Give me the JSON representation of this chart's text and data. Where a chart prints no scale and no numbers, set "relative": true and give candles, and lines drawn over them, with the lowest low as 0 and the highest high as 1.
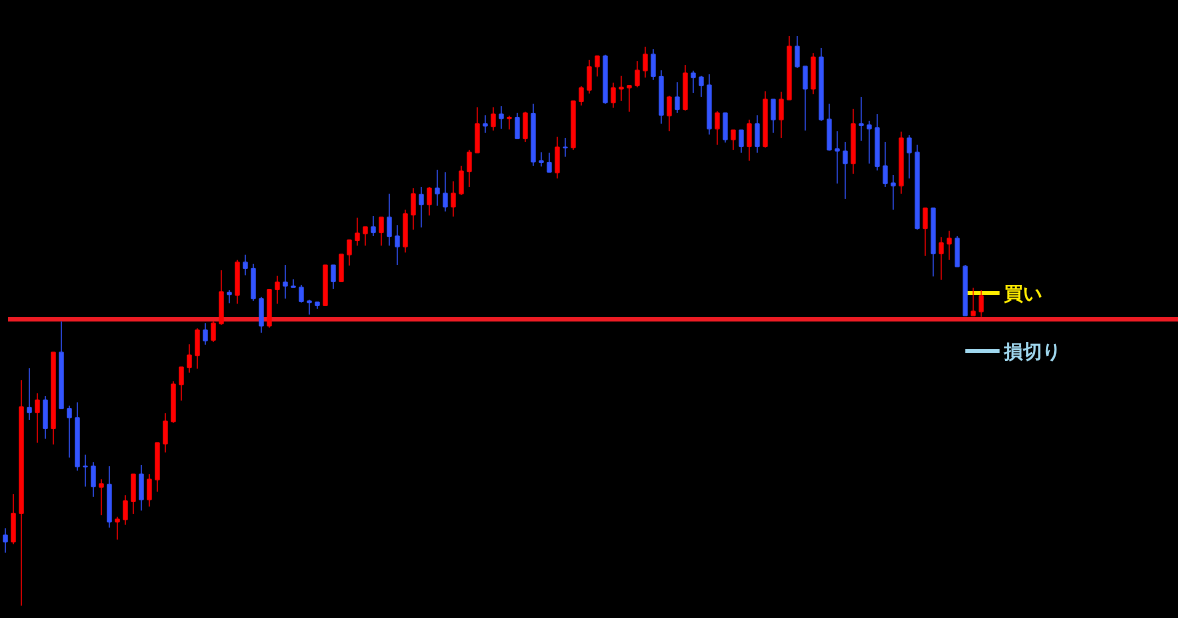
{
  "chart_data": {
    "type": "candlestick",
    "relative": true,
    "categories": [
      null,
      null,
      null,
      null,
      null,
      null,
      null,
      null,
      null,
      null,
      null,
      null,
      null,
      null,
      null,
      null,
      null,
      null,
      null,
      null,
      null,
      null,
      null,
      null,
      null,
      null,
      null,
      null,
      null,
      null,
      null,
      null,
      null,
      null,
      null,
      null,
      null,
      null,
      null,
      null,
      null,
      null,
      null,
      null,
      null,
      null,
      null,
      null,
      null,
      null,
      null,
      null,
      null,
      null,
      null,
      null,
      null,
      null,
      null,
      null,
      null,
      null,
      null,
      null,
      null,
      null,
      null,
      null,
      null,
      null,
      null,
      null,
      null,
      null,
      null,
      null,
      null,
      null,
      null,
      null,
      null,
      null,
      null,
      null,
      null,
      null,
      null,
      null,
      null,
      null,
      null,
      null,
      null,
      null,
      null,
      null,
      null,
      null,
      null,
      null,
      null,
      null,
      null,
      null,
      null,
      null,
      null,
      null,
      null,
      null,
      null,
      null,
      null,
      null,
      null,
      null,
      null,
      null,
      null,
      null,
      null,
      null,
      null
    ],
    "ohlc": [
      [
        0.124,
        0.136,
        0.093,
        0.112
      ],
      [
        0.112,
        0.196,
        0.108,
        0.162
      ],
      [
        0.162,
        0.396,
        0,
        0.349
      ],
      [
        0.348,
        0.417,
        0.326,
        0.339
      ],
      [
        0.339,
        0.373,
        0.286,
        0.361
      ],
      [
        0.361,
        0.368,
        0.293,
        0.311
      ],
      [
        0.311,
        0.445,
        0.283,
        0.445
      ],
      [
        0.445,
        0.499,
        0.346,
        0.346
      ],
      [
        0.346,
        0.351,
        0.26,
        0.33
      ],
      [
        0.33,
        0.357,
        0.237,
        0.244
      ],
      [
        0.245,
        0.265,
        0.209,
        0.244
      ],
      [
        0.245,
        0.252,
        0.191,
        0.209
      ],
      [
        0.208,
        0.222,
        0.159,
        0.214
      ],
      [
        0.213,
        0.245,
        0.137,
        0.147
      ],
      [
        0.147,
        0.156,
        0.116,
        0.152
      ],
      [
        0.151,
        0.194,
        0.142,
        0.184
      ],
      [
        0.183,
        0.231,
        0.161,
        0.231
      ],
      [
        0.231,
        0.247,
        0.167,
        0.186
      ],
      [
        0.186,
        0.231,
        0.174,
        0.222
      ],
      [
        0.221,
        0.286,
        0.2,
        0.286
      ],
      [
        0.284,
        0.338,
        0.269,
        0.324
      ],
      [
        0.323,
        0.394,
        0.321,
        0.389
      ],
      [
        0.388,
        0.419,
        0.36,
        0.419
      ],
      [
        0.418,
        0.459,
        0.409,
        0.44
      ],
      [
        0.439,
        0.487,
        0.416,
        0.484
      ],
      [
        0.484,
        0.496,
        0.458,
        0.465
      ],
      [
        0.466,
        0.5,
        0.463,
        0.496
      ],
      [
        0.495,
        0.589,
        0.493,
        0.551
      ],
      [
        0.55,
        0.554,
        0.531,
        0.546
      ],
      [
        0.545,
        0.607,
        0.53,
        0.603
      ],
      [
        0.603,
        0.616,
        0.58,
        0.592
      ],
      [
        0.592,
        0.6,
        0.535,
        0.539
      ],
      [
        0.539,
        0.542,
        0.479,
        0.491
      ],
      [
        0.491,
        0.555,
        0.488,
        0.555
      ],
      [
        0.555,
        0.579,
        0.53,
        0.568
      ],
      [
        0.568,
        0.598,
        0.539,
        0.561
      ],
      [
        0.561,
        0.573,
        0.559,
        0.559
      ],
      [
        0.559,
        0.563,
        0.532,
        0.534
      ],
      [
        0.535,
        0.537,
        0.511,
        0.532
      ],
      [
        0.533,
        0.533,
        0.521,
        0.527
      ],
      [
        0.527,
        0.598,
        0.527,
        0.598
      ],
      [
        0.598,
        0.598,
        0.556,
        0.569
      ],
      [
        0.569,
        0.617,
        0.569,
        0.617
      ],
      [
        0.616,
        0.642,
        0.597,
        0.642
      ],
      [
        0.641,
        0.681,
        0.632,
        0.654
      ],
      [
        0.653,
        0.665,
        0.632,
        0.665
      ],
      [
        0.665,
        0.684,
        0.649,
        0.655
      ],
      [
        0.655,
        0.682,
        0.632,
        0.682
      ],
      [
        0.682,
        0.723,
        0.632,
        0.648
      ],
      [
        0.649,
        0.668,
        0.598,
        0.63
      ],
      [
        0.63,
        0.695,
        0.62,
        0.688
      ],
      [
        0.686,
        0.733,
        0.66,
        0.723
      ],
      [
        0.722,
        0.735,
        0.664,
        0.704
      ],
      [
        0.704,
        0.735,
        0.685,
        0.733
      ],
      [
        0.733,
        0.765,
        0.702,
        0.723
      ],
      [
        0.724,
        0.761,
        0.692,
        0.7
      ],
      [
        0.7,
        0.745,
        0.683,
        0.724
      ],
      [
        0.723,
        0.772,
        0.721,
        0.763
      ],
      [
        0.762,
        0.8,
        0.735,
        0.796
      ],
      [
        0.795,
        0.875,
        0.795,
        0.846
      ],
      [
        0.846,
        0.861,
        0.83,
        0.842
      ],
      [
        0.841,
        0.875,
        0.834,
        0.863
      ],
      [
        0.863,
        0.877,
        0.837,
        0.855
      ],
      [
        0.855,
        0.86,
        0.836,
        0.857
      ],
      [
        0.857,
        0.865,
        0.82,
        0.82
      ],
      [
        0.82,
        0.867,
        0.814,
        0.865
      ],
      [
        0.864,
        0.881,
        0.772,
        0.779
      ],
      [
        0.781,
        0.796,
        0.771,
        0.778
      ],
      [
        0.778,
        0.795,
        0.761,
        0.761
      ],
      [
        0.76,
        0.823,
        0.75,
        0.805
      ],
      [
        0.805,
        0.821,
        0.788,
        0.804
      ],
      [
        0.804,
        0.886,
        0.8,
        0.886
      ],
      [
        0.885,
        0.912,
        0.878,
        0.909
      ],
      [
        0.905,
        0.958,
        0.899,
        0.946
      ],
      [
        0.946,
        0.965,
        0.929,
        0.965
      ],
      [
        0.965,
        0.967,
        0.881,
        0.883
      ],
      [
        0.883,
        0.918,
        0.874,
        0.909
      ],
      [
        0.907,
        0.93,
        0.886,
        0.91
      ],
      [
        0.909,
        0.913,
        0.867,
        0.913
      ],
      [
        0.913,
        0.956,
        0.91,
        0.94
      ],
      [
        0.939,
        0.981,
        0.927,
        0.968
      ],
      [
        0.968,
        0.977,
        0.923,
        0.929
      ],
      [
        0.929,
        0.94,
        0.846,
        0.861
      ],
      [
        0.86,
        0.895,
        0.833,
        0.893
      ],
      [
        0.893,
        0.919,
        0.865,
        0.871
      ],
      [
        0.871,
        0.949,
        0.869,
        0.935
      ],
      [
        0.935,
        0.939,
        0.9,
        0.927
      ],
      [
        0.928,
        0.93,
        0.893,
        0.913
      ],
      [
        0.914,
        0.933,
        0.827,
        0.837
      ],
      [
        0.837,
        0.868,
        0.809,
        0.865
      ],
      [
        0.865,
        0.865,
        0.813,
        0.818
      ],
      [
        0.818,
        0.835,
        0.8,
        0.835
      ],
      [
        0.835,
        0.835,
        0.795,
        0.806
      ],
      [
        0.806,
        0.853,
        0.781,
        0.846
      ],
      [
        0.846,
        0.861,
        0.795,
        0.806
      ],
      [
        0.806,
        0.903,
        0.804,
        0.889
      ],
      [
        0.889,
        0.889,
        0.83,
        0.853
      ],
      [
        0.853,
        0.902,
        0.821,
        0.889
      ],
      [
        0.888,
        1,
        0.888,
        0.982
      ],
      [
        0.982,
        1,
        0.944,
        0.946
      ],
      [
        0.947,
        0.947,
        0.834,
        0.907
      ],
      [
        0.907,
        0.97,
        0.898,
        0.963
      ],
      [
        0.963,
        0.979,
        0.851,
        0.853
      ],
      [
        0.854,
        0.881,
        0.799,
        0.8
      ],
      [
        0.802,
        0.833,
        0.741,
        0.798
      ],
      [
        0.798,
        0.814,
        0.714,
        0.776
      ],
      [
        0.776,
        0.872,
        0.758,
        0.846
      ],
      [
        0.846,
        0.893,
        0.816,
        0.843
      ],
      [
        0.844,
        0.851,
        0.776,
        0.837
      ],
      [
        0.839,
        0.863,
        0.764,
        0.771
      ],
      [
        0.772,
        0.814,
        0.735,
        0.741
      ],
      [
        0.742,
        0.756,
        0.695,
        0.737
      ],
      [
        0.737,
        0.832,
        0.723,
        0.821
      ],
      [
        0.821,
        0.826,
        0.75,
        0.795
      ],
      [
        0.796,
        0.809,
        0.66,
        0.662
      ],
      [
        0.662,
        0.698,
        0.614,
        0.698
      ],
      [
        0.698,
        0.698,
        0.578,
        0.618
      ],
      [
        0.618,
        0.647,
        0.572,
        0.637
      ],
      [
        0.635,
        0.658,
        0.607,
        0.645
      ],
      [
        0.645,
        0.649,
        0.595,
        0.595
      ],
      [
        0.596,
        0.598,
        0.509,
        0.509
      ],
      [
        0.509,
        0.558,
        0.509,
        0.517
      ],
      [
        0.516,
        0.554,
        0.507,
        0.544
      ]
    ],
    "colors": [
      "#3355ff",
      "#ff0000",
      "#ff0000",
      "#3355ff",
      "#ff0000",
      "#3355ff",
      "#ff0000",
      "#3355ff",
      "#3355ff",
      "#3355ff",
      "#3355ff",
      "#3355ff",
      "#ff0000",
      "#3355ff",
      "#ff0000",
      "#ff0000",
      "#ff0000",
      "#3355ff",
      "#ff0000",
      "#ff0000",
      "#ff0000",
      "#ff0000",
      "#ff0000",
      "#ff0000",
      "#ff0000",
      "#3355ff",
      "#ff0000",
      "#ff0000",
      "#3355ff",
      "#ff0000",
      "#3355ff",
      "#3355ff",
      "#3355ff",
      "#ff0000",
      "#ff0000",
      "#3355ff",
      "#3355ff",
      "#3355ff",
      "#3355ff",
      "#3355ff",
      "#ff0000",
      "#3355ff",
      "#ff0000",
      "#ff0000",
      "#ff0000",
      "#ff0000",
      "#3355ff",
      "#ff0000",
      "#3355ff",
      "#3355ff",
      "#ff0000",
      "#ff0000",
      "#3355ff",
      "#ff0000",
      "#3355ff",
      "#3355ff",
      "#ff0000",
      "#ff0000",
      "#ff0000",
      "#ff0000",
      "#3355ff",
      "#ff0000",
      "#3355ff",
      "#ff0000",
      "#3355ff",
      "#ff0000",
      "#3355ff",
      "#3355ff",
      "#3355ff",
      "#ff0000",
      "#3355ff",
      "#ff0000",
      "#ff0000",
      "#ff0000",
      "#ff0000",
      "#3355ff",
      "#ff0000",
      "#ff0000",
      "#ff0000",
      "#ff0000",
      "#ff0000",
      "#3355ff",
      "#3355ff",
      "#ff0000",
      "#3355ff",
      "#ff0000",
      "#3355ff",
      "#3355ff",
      "#3355ff",
      "#ff0000",
      "#3355ff",
      "#ff0000",
      "#3355ff",
      "#ff0000",
      "#3355ff",
      "#ff0000",
      "#3355ff",
      "#ff0000",
      "#ff0000",
      "#3355ff",
      "#3355ff",
      "#ff0000",
      "#3355ff",
      "#3355ff",
      "#3355ff",
      "#3355ff",
      "#ff0000",
      "#3355ff",
      "#3355ff",
      "#3355ff",
      "#3355ff",
      "#3355ff",
      "#ff0000",
      "#3355ff",
      "#3355ff",
      "#ff0000",
      "#3355ff",
      "#ff0000",
      "#ff0000",
      "#3355ff",
      "#3355ff",
      "#ff0000",
      "#ff0000"
    ],
    "ref_lines": [
      {
        "axis": "y",
        "value": 0.503,
        "color": "#ee1c24"
      },
      {
        "axis": "y",
        "value": 0.549,
        "label": "買い",
        "color": "#ffee00"
      },
      {
        "axis": "y",
        "value": 0.447,
        "label": "損切り",
        "color": "#a0d8ef"
      }
    ]
  }
}
